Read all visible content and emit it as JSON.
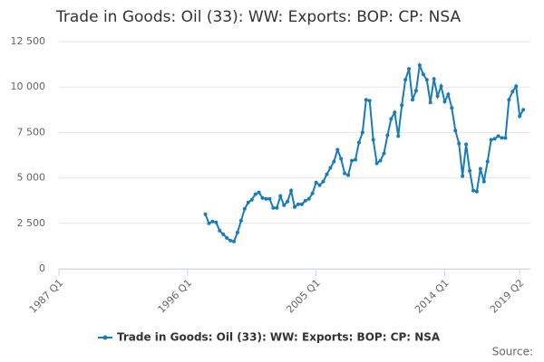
{
  "chart_data": {
    "type": "line",
    "title": "Trade in Goods: Oil (33): WW: Exports: BOP: CP: NSA",
    "source": "Source:",
    "x": [
      1997.25,
      1997.5,
      1997.75,
      1998,
      1998.25,
      1998.5,
      1998.75,
      1999,
      1999.25,
      1999.5,
      1999.75,
      2000,
      2000.25,
      2000.5,
      2000.75,
      2001,
      2001.25,
      2001.5,
      2001.75,
      2002,
      2002.25,
      2002.5,
      2002.75,
      2003,
      2003.25,
      2003.5,
      2003.75,
      2004,
      2004.25,
      2004.5,
      2004.75,
      2005,
      2005.25,
      2005.5,
      2005.75,
      2006,
      2006.25,
      2006.5,
      2006.75,
      2007,
      2007.25,
      2007.5,
      2007.75,
      2008,
      2008.25,
      2008.5,
      2008.75,
      2009,
      2009.25,
      2009.5,
      2009.75,
      2010,
      2010.25,
      2010.5,
      2010.75,
      2011,
      2011.25,
      2011.5,
      2011.75,
      2012,
      2012.25,
      2012.5,
      2012.75,
      2013,
      2013.25,
      2013.5,
      2013.75,
      2014,
      2014.25,
      2014.5,
      2014.75,
      2015,
      2015.25,
      2015.5,
      2015.75,
      2016,
      2016.25,
      2016.5,
      2016.75,
      2017,
      2017.25,
      2017.5,
      2017.75,
      2018,
      2018.25,
      2018.5,
      2018.75,
      2019,
      2019.25,
      2019.5
    ],
    "series": [
      {
        "name": "Trade in Goods: Oil (33): WW: Exports: BOP: CP: NSA",
        "color": "#1a7bb9",
        "values": [
          3000,
          2500,
          2600,
          2550,
          2100,
          1900,
          1700,
          1550,
          1500,
          2000,
          2650,
          3300,
          3650,
          3800,
          4100,
          4200,
          3900,
          3850,
          3850,
          3350,
          3350,
          4000,
          3500,
          3700,
          4300,
          3400,
          3550,
          3550,
          3750,
          3850,
          4150,
          4750,
          4600,
          4800,
          5200,
          5550,
          5900,
          6550,
          6050,
          5250,
          5150,
          5950,
          6000,
          6950,
          7500,
          9300,
          9250,
          7100,
          5800,
          5950,
          6350,
          7350,
          8250,
          8600,
          7300,
          9000,
          10400,
          11000,
          9300,
          9800,
          11200,
          10700,
          10400,
          9150,
          10450,
          9500,
          10050,
          9200,
          9600,
          8850,
          7600,
          6900,
          5100,
          6850,
          5400,
          4300,
          4250,
          5500,
          4800,
          5900,
          7100,
          7150,
          7300,
          7200,
          7200,
          9300,
          9750,
          10050,
          8400,
          8750
        ]
      }
    ],
    "xlim": [
      1987,
      2020
    ],
    "xticks": [
      {
        "value": 1987,
        "label": "1987 Q1"
      },
      {
        "value": 1996,
        "label": "1996 Q1"
      },
      {
        "value": 2005,
        "label": "2005 Q1"
      },
      {
        "value": 2014,
        "label": "2014 Q1"
      },
      {
        "value": 2019.25,
        "label": "2019 Q2"
      }
    ],
    "ylim": [
      0,
      12500
    ],
    "yticks": [
      0,
      {
        "value": 2500,
        "label": "2 500"
      },
      {
        "value": 5000,
        "label": "5 000"
      },
      {
        "value": 7500,
        "label": "7 500"
      },
      {
        "value": 10000,
        "label": "10 000"
      },
      {
        "value": 12500,
        "label": "12 500"
      }
    ],
    "grid": true
  }
}
